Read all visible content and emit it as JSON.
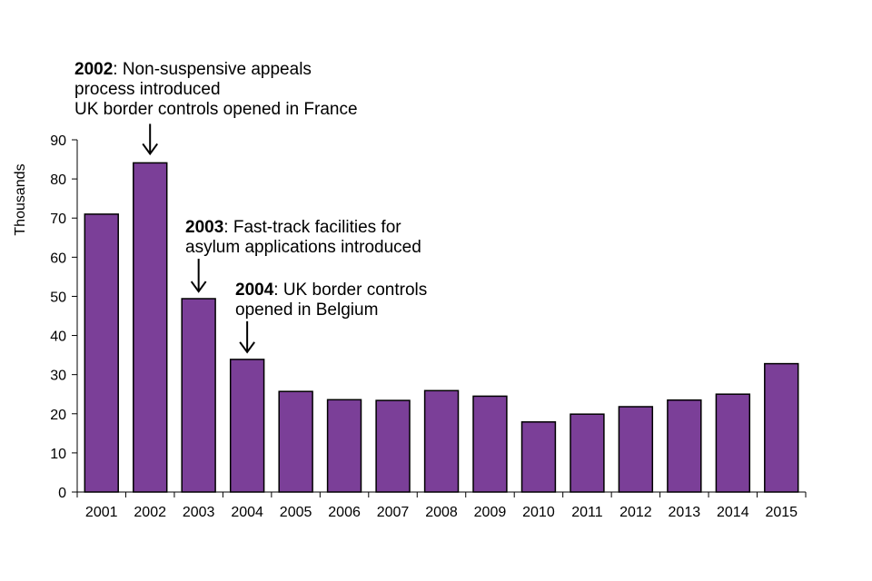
{
  "chart_data": {
    "type": "bar",
    "title": "",
    "xlabel": "",
    "ylabel": "Thousands",
    "ylim": [
      0,
      90
    ],
    "yticks": [
      0,
      10,
      20,
      30,
      40,
      50,
      60,
      70,
      80,
      90
    ],
    "categories": [
      "2001",
      "2002",
      "2003",
      "2004",
      "2005",
      "2006",
      "2007",
      "2008",
      "2009",
      "2010",
      "2011",
      "2012",
      "2013",
      "2014",
      "2015"
    ],
    "values": [
      71.0,
      84.1,
      49.4,
      33.9,
      25.7,
      23.6,
      23.4,
      25.9,
      24.5,
      17.9,
      19.9,
      21.8,
      23.5,
      25.0,
      32.8
    ],
    "bar_color": "#7b3f98",
    "grid": false,
    "annotations": [
      {
        "year": "2002",
        "bold": "2002",
        "lines": [
          ": Non-suspensive appeals",
          "process introduced",
          "UK border controls opened in France"
        ]
      },
      {
        "year": "2003",
        "bold": "2003",
        "lines": [
          ": Fast-track facilities for",
          "asylum applications introduced"
        ]
      },
      {
        "year": "2004",
        "bold": "2004",
        "lines": [
          ": UK border controls",
          "opened in Belgium"
        ]
      }
    ]
  }
}
